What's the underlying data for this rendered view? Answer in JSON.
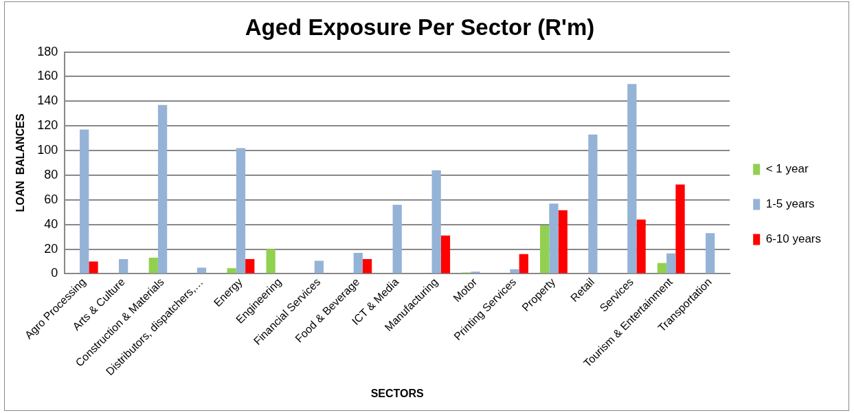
{
  "chart_data": {
    "type": "bar",
    "title": "Aged Exposure Per Sector (R'm)",
    "xlabel": "SECTORS",
    "ylabel": "LOAN  BALANCES",
    "categories": [
      "Agro Processing",
      "Arts & Culture",
      "Construction & Materials",
      "Distributors, dispatchers,…",
      "Energy",
      "Engineering",
      "Financial Services",
      "Food & Beverage",
      "ICT & Media",
      "Manufacturing",
      "Motor",
      "Printing Services",
      "Property",
      "Retail",
      "Services",
      "Tourism & Entertainment",
      "Transportation"
    ],
    "series": [
      {
        "name": "< 1 year",
        "color": "#92d050",
        "values": [
          null,
          null,
          13,
          null,
          4.6,
          20,
          null,
          null,
          null,
          null,
          0.7,
          null,
          39.3,
          null,
          null,
          8.8,
          null
        ]
      },
      {
        "name": "1-5 years",
        "color": "#95b3d7",
        "values": [
          117,
          12,
          137,
          5,
          102,
          null,
          10.5,
          17,
          56,
          84,
          1.7,
          3.7,
          57,
          113,
          154,
          16.6,
          33
        ]
      },
      {
        "name": "6-10 years",
        "color": "#ff0000",
        "values": [
          10,
          null,
          null,
          null,
          12,
          null,
          null,
          12,
          null,
          31,
          null,
          16,
          51.5,
          null,
          44,
          72.5,
          null
        ]
      }
    ],
    "ylim": [
      0,
      180
    ],
    "yticks": [
      0,
      20,
      40,
      60,
      80,
      100,
      120,
      140,
      160,
      180
    ],
    "grid": "y",
    "legend": "right"
  }
}
